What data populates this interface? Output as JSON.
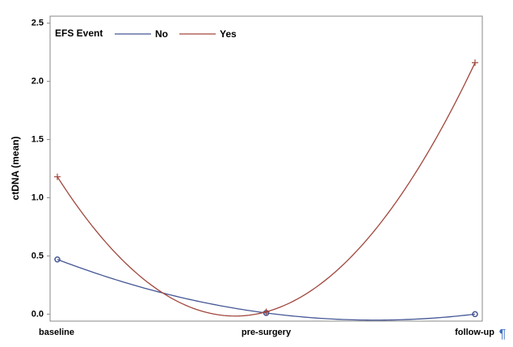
{
  "chart_data": {
    "type": "line",
    "y_label": "ctDNA (mean)",
    "legend_title": "EFS Event",
    "categories": [
      "baseline",
      "pre-surgery",
      "follow-up"
    ],
    "series": [
      {
        "name": "No",
        "color": "#445694",
        "marker": "circle",
        "values": [
          0.47,
          0.01,
          0.0
        ]
      },
      {
        "name": "Yes",
        "color": "#a0463c",
        "marker": "plus",
        "values": [
          1.18,
          0.02,
          2.16
        ]
      }
    ],
    "ylim": [
      -0.06,
      2.56
    ],
    "yticks": [
      {
        "value": 0,
        "label": "0.0"
      },
      {
        "value": 0.5,
        "label": "0.5"
      },
      {
        "value": 1,
        "label": "1.0"
      },
      {
        "value": 1.5,
        "label": "1.5"
      },
      {
        "value": 2,
        "label": "2.0"
      },
      {
        "value": 2.5,
        "label": "2.5"
      }
    ],
    "smooth": true,
    "corner_mark": "¶"
  }
}
